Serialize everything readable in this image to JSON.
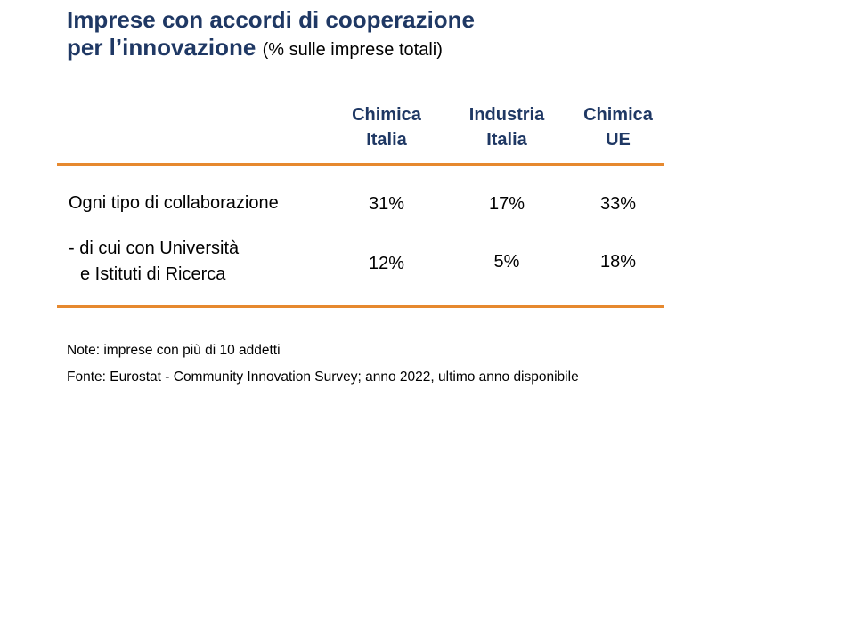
{
  "title": {
    "line1": "Imprese con accordi di cooperazione",
    "line2": "per l’innovazione",
    "subtitle": "(% sulle imprese totali)"
  },
  "colors": {
    "title": "#1f3864",
    "rule": "#e6892f",
    "text": "#000000"
  },
  "chart_data": {
    "type": "table",
    "columns": [
      {
        "line1": "Chimica",
        "line2": "Italia"
      },
      {
        "line1": "Industria",
        "line2": "Italia"
      },
      {
        "line1": "Chimica",
        "line2": "UE"
      }
    ],
    "rows": [
      {
        "label": "Ogni tipo di collaborazione",
        "values": [
          "31%",
          "17%",
          "33%"
        ]
      },
      {
        "label_line1": "- di cui con Università",
        "label_line2": "e Istituti di Ricerca",
        "values": [
          "12%",
          "5%",
          "18%"
        ]
      }
    ]
  },
  "notes": {
    "note": "Note: imprese con più di 10 addetti",
    "source": "Fonte: Eurostat - Community Innovation Survey; anno 2022, ultimo anno disponibile"
  }
}
